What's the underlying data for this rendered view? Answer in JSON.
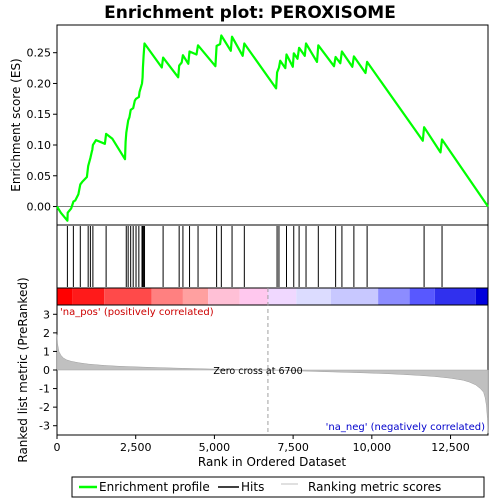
{
  "chart_data": {
    "type": "line",
    "title": "Enrichment plot: PEROXISOME",
    "top_panel": {
      "ylabel": "Enrichment score (ES)",
      "ylim": [
        -0.03,
        0.295
      ],
      "yticks": [
        0.0,
        0.05,
        0.1,
        0.15,
        0.2,
        0.25
      ],
      "ytick_labels": [
        "0.00",
        "0.05",
        "0.10",
        "0.15",
        "0.20",
        "0.25"
      ],
      "series": [
        {
          "name": "Enrichment profile",
          "color": "#00ff00",
          "x": [
            0,
            120,
            330,
            340,
            450,
            520,
            580,
            680,
            740,
            800,
            950,
            990,
            1060,
            1110,
            1120,
            1140,
            1240,
            1520,
            1560,
            1760,
            2160,
            2180,
            2200,
            2260,
            2300,
            2340,
            2420,
            2470,
            2510,
            2600,
            2620,
            2700,
            2720,
            2730,
            2750,
            2780,
            3330,
            3370,
            3850,
            3880,
            3960,
            4000,
            4170,
            4210,
            4430,
            4480,
            5030,
            5070,
            5180,
            5220,
            5520,
            5560,
            5900,
            5950,
            6960,
            6990,
            7050,
            7090,
            7250,
            7290,
            7490,
            7520,
            7640,
            7690,
            7870,
            7910,
            8260,
            8300,
            8800,
            8850,
            9000,
            9050,
            9380,
            9430,
            9800,
            9850,
            11620,
            11660,
            12180,
            12230,
            13690
          ],
          "y": [
            0.0,
            -0.01,
            -0.023,
            -0.01,
            -0.003,
            0.008,
            0.01,
            0.02,
            0.036,
            0.04,
            0.048,
            0.066,
            0.079,
            0.09,
            0.092,
            0.1,
            0.108,
            0.102,
            0.118,
            0.11,
            0.077,
            0.105,
            0.12,
            0.14,
            0.145,
            0.157,
            0.16,
            0.172,
            0.175,
            0.178,
            0.186,
            0.2,
            0.21,
            0.225,
            0.245,
            0.265,
            0.226,
            0.242,
            0.21,
            0.229,
            0.234,
            0.246,
            0.232,
            0.252,
            0.247,
            0.262,
            0.228,
            0.261,
            0.264,
            0.278,
            0.253,
            0.276,
            0.245,
            0.265,
            0.192,
            0.218,
            0.226,
            0.237,
            0.225,
            0.247,
            0.227,
            0.249,
            0.24,
            0.258,
            0.245,
            0.265,
            0.235,
            0.262,
            0.228,
            0.243,
            0.233,
            0.252,
            0.227,
            0.244,
            0.217,
            0.235,
            0.107,
            0.129,
            0.088,
            0.109,
            0.0
          ]
        }
      ]
    },
    "hits": {
      "name": "Hits",
      "x": [
        330,
        520,
        740,
        990,
        1060,
        1140,
        1560,
        2200,
        2260,
        2340,
        2420,
        2510,
        2600,
        2700,
        2720,
        2750,
        2780,
        3370,
        3880,
        4000,
        4210,
        4480,
        5070,
        5220,
        5560,
        5950,
        6990,
        7050,
        7290,
        7520,
        7690,
        7910,
        8300,
        8850,
        9050,
        9430,
        9850,
        11660,
        12230
      ]
    },
    "ranking_bar": {
      "segments": [
        {
          "from": 0,
          "to": 500,
          "color": "#ff0000"
        },
        {
          "from": 500,
          "to": 1500,
          "color": "#ff1a1a"
        },
        {
          "from": 1500,
          "to": 3000,
          "color": "#ff4a4a"
        },
        {
          "from": 3000,
          "to": 4000,
          "color": "#ff8080"
        },
        {
          "from": 4000,
          "to": 4800,
          "color": "#ffa0a0"
        },
        {
          "from": 4800,
          "to": 5800,
          "color": "#ffc0d6"
        },
        {
          "from": 5800,
          "to": 6700,
          "color": "#ffc8ee"
        },
        {
          "from": 6700,
          "to": 7600,
          "color": "#f0d8ff"
        },
        {
          "from": 7600,
          "to": 8700,
          "color": "#dcdcff"
        },
        {
          "from": 8700,
          "to": 10200,
          "color": "#c8c8ff"
        },
        {
          "from": 10200,
          "to": 11200,
          "color": "#8c8cff"
        },
        {
          "from": 11200,
          "to": 12000,
          "color": "#5858ff"
        },
        {
          "from": 12000,
          "to": 13300,
          "color": "#3030ee"
        },
        {
          "from": 13300,
          "to": 13690,
          "color": "#0000dd"
        }
      ]
    },
    "bottom_panel": {
      "ylabel": "Ranked list metric (PreRanked)",
      "ylim": [
        -3.5,
        3.5
      ],
      "yticks": [
        -3,
        -2,
        -1,
        0,
        1,
        2,
        3
      ],
      "ytick_labels": [
        "-3",
        "-2",
        "-1",
        "0",
        "1",
        "2",
        "3"
      ],
      "metric": {
        "name": "Ranking metric scores",
        "x": [
          0,
          20,
          60,
          120,
          200,
          300,
          450,
          700,
          1000,
          1500,
          2000,
          3000,
          4000,
          5000,
          6000,
          6700,
          7500,
          8500,
          9500,
          10500,
          11000,
          11500,
          12000,
          12500,
          12900,
          13100,
          13300,
          13450,
          13550,
          13600,
          13640,
          13670,
          13690
        ],
        "y": [
          1.9,
          1.4,
          1.0,
          0.8,
          0.65,
          0.55,
          0.47,
          0.39,
          0.32,
          0.25,
          0.2,
          0.14,
          0.09,
          0.05,
          0.02,
          0.0,
          -0.04,
          -0.09,
          -0.14,
          -0.2,
          -0.24,
          -0.29,
          -0.35,
          -0.44,
          -0.55,
          -0.65,
          -0.8,
          -1.0,
          -1.2,
          -1.5,
          -1.9,
          -2.6,
          -3.4
        ]
      },
      "zero_cross_label": "Zero cross at 6700",
      "zero_cross_x": 6700,
      "pos_label": "'na_pos' (positively correlated)",
      "neg_label": "'na_neg' (negatively correlated)"
    },
    "xlabel": "Rank in Ordered Dataset",
    "xlim": [
      0,
      13690
    ],
    "xticks": [
      0,
      2500,
      5000,
      7500,
      10000,
      12500
    ],
    "xtick_labels": [
      "0",
      "2,500",
      "5,000",
      "7,500",
      "10,000",
      "12,500"
    ],
    "legend": {
      "placement": "bottom",
      "items": [
        {
          "label": "Enrichment profile",
          "color": "#00ff00",
          "style": "thick-line"
        },
        {
          "label": "Hits",
          "color": "#000000",
          "style": "line"
        },
        {
          "label": "Ranking metric scores",
          "color": "#c0c0c0",
          "style": "thin-line"
        }
      ]
    }
  }
}
